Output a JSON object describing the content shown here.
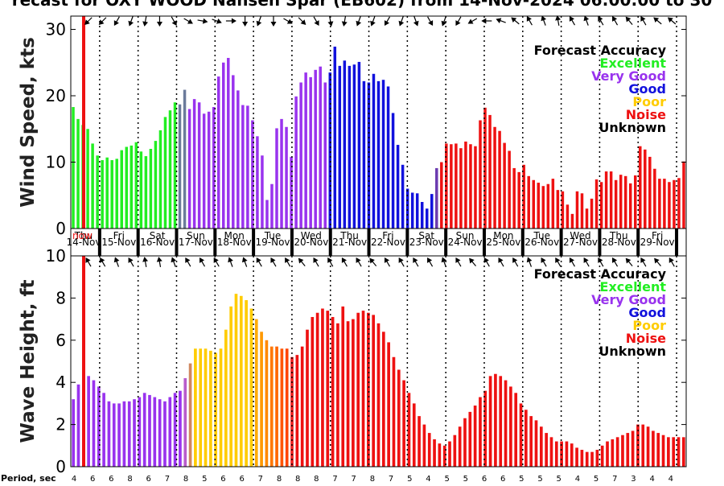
{
  "title": "recast for OXY WOOD Nansen Spar (EB602) from 14-Nov-2024 06:00:00 to 30",
  "now_label": "now",
  "day_labels": [
    "Thu",
    "Fri",
    "Sat",
    "Sun",
    "Mon",
    "Tue",
    "Wed",
    "Thu",
    "Fri",
    "Sat",
    "Sun",
    "Mon",
    "Tue",
    "Wed",
    "Thu",
    "Fri"
  ],
  "date_labels": [
    "14-Nov",
    "15-Nov",
    "16-Nov",
    "17-Nov",
    "18-Nov",
    "19-Nov",
    "20-Nov",
    "21-Nov",
    "22-Nov",
    "23-Nov",
    "24-Nov",
    "25-Nov",
    "26-Nov",
    "27-Nov",
    "28-Nov",
    "29-Nov"
  ],
  "legend": {
    "title": "Forecast Accuracy",
    "items": [
      {
        "label": "Excellent",
        "color": "#22ee22"
      },
      {
        "label": "Very Good",
        "color": "#9933ee"
      },
      {
        "label": "Good",
        "color": "#1111dd"
      },
      {
        "label": "Poor",
        "color": "#ffcc00"
      },
      {
        "label": "Noise",
        "color": "#ee1111"
      },
      {
        "label": "Unknown",
        "color": "#000000"
      }
    ]
  },
  "period_label": "Period, sec",
  "chart_data": [
    {
      "type": "bar",
      "ylabel": "Wind Speed, kts",
      "ylim": [
        0,
        32
      ],
      "yticks": [
        0,
        10,
        20,
        30
      ],
      "values": [
        18.3,
        16.5,
        15.6,
        15.0,
        12.8,
        11.0,
        10.3,
        10.7,
        10.3,
        10.5,
        11.8,
        12.3,
        12.5,
        13.0,
        11.6,
        10.9,
        12.0,
        13.2,
        14.8,
        16.8,
        17.8,
        19.0,
        18.7,
        20.9,
        18.0,
        19.5,
        19.0,
        17.3,
        17.6,
        18.3,
        22.9,
        25.0,
        25.7,
        23.1,
        20.8,
        18.6,
        18.5,
        16.3,
        13.9,
        11.0,
        4.3,
        6.7,
        15.1,
        16.5,
        15.3,
        10.8,
        19.9,
        22.0,
        23.5,
        22.8,
        23.9,
        24.4,
        22.0,
        23.5,
        27.4,
        24.5,
        25.3,
        24.5,
        24.7,
        25.1,
        22.2,
        22.0,
        23.3,
        22.2,
        22.4,
        21.4,
        17.4,
        12.6,
        9.6,
        6.0,
        5.4,
        5.3,
        4.0,
        3.0,
        5.2,
        9.1,
        10.0,
        12.8,
        12.7,
        12.8,
        12.1,
        13.1,
        12.7,
        12.4,
        16.3,
        18.2,
        17.1,
        15.3,
        14.7,
        12.9,
        11.7,
        9.1,
        8.5,
        9.6,
        7.9,
        7.3,
        6.9,
        6.4,
        6.7,
        7.5,
        5.8,
        5.6,
        3.6,
        2.2,
        5.6,
        5.3,
        3.0,
        4.5,
        7.4,
        7.0,
        8.6,
        8.6,
        7.3,
        8.1,
        7.9,
        6.8,
        8.0,
        12.4,
        11.9,
        10.8,
        9.0,
        7.5,
        7.5,
        7.0,
        7.3,
        7.6,
        10.1
      ],
      "colors": [
        "#22ee22",
        "#22ee22",
        "#22ee22",
        "#22ee22",
        "#22ee22",
        "#22ee22",
        "#22ee22",
        "#22ee22",
        "#22ee22",
        "#22ee22",
        "#22ee22",
        "#22ee22",
        "#22ee22",
        "#22ee22",
        "#22ee22",
        "#22ee22",
        "#22ee22",
        "#22ee22",
        "#22ee22",
        "#22ee22",
        "#22ee22",
        "#22ee22",
        "#6b7b9b",
        "#6b7b9b",
        "#9933ee",
        "#9933ee",
        "#9933ee",
        "#9933ee",
        "#9933ee",
        "#9933ee",
        "#9933ee",
        "#9933ee",
        "#9933ee",
        "#9933ee",
        "#9933ee",
        "#9933ee",
        "#9933ee",
        "#9933ee",
        "#9933ee",
        "#9933ee",
        "#9933ee",
        "#9933ee",
        "#9933ee",
        "#9933ee",
        "#9933ee",
        "#9933ee",
        "#9933ee",
        "#9933ee",
        "#9933ee",
        "#9933ee",
        "#9933ee",
        "#9933ee",
        "#9933ee",
        "#1111dd",
        "#1111dd",
        "#1111dd",
        "#1111dd",
        "#1111dd",
        "#1111dd",
        "#1111dd",
        "#1111dd",
        "#1111dd",
        "#1111dd",
        "#1111dd",
        "#1111dd",
        "#1111dd",
        "#1111dd",
        "#1111dd",
        "#1111dd",
        "#1111dd",
        "#1111dd",
        "#1111dd",
        "#1111dd",
        "#1111dd",
        "#1111dd",
        "#6b3bb0",
        "#ee1111",
        "#ee1111",
        "#ee1111",
        "#ee1111",
        "#ee1111",
        "#ee1111",
        "#ee1111",
        "#ee1111",
        "#ee1111",
        "#ee1111",
        "#ee1111",
        "#ee1111",
        "#ee1111",
        "#ee1111",
        "#ee1111",
        "#ee1111",
        "#ee1111",
        "#ee1111",
        "#ee1111",
        "#ee1111",
        "#ee1111",
        "#ee1111",
        "#ee1111",
        "#ee1111",
        "#ee1111",
        "#ee1111",
        "#ee1111",
        "#ee1111",
        "#ee1111",
        "#ee1111",
        "#ee1111",
        "#ee1111",
        "#ee1111",
        "#ee1111",
        "#ee1111",
        "#ee1111",
        "#ee1111",
        "#ee1111",
        "#ee1111",
        "#ee1111",
        "#ee1111",
        "#ee1111",
        "#ee1111",
        "#ee1111",
        "#ee1111",
        "#ee1111",
        "#ee1111",
        "#ee1111",
        "#ee1111"
      ],
      "arrow_angles": [
        45,
        45,
        30,
        20,
        10,
        0,
        330,
        300,
        280,
        290,
        270,
        0,
        20,
        0,
        300,
        315,
        330,
        350,
        10,
        20,
        20,
        30,
        20,
        340,
        330,
        20,
        30,
        60,
        90,
        110,
        130,
        150,
        160,
        170,
        150,
        160,
        150,
        150,
        140,
        150,
        130,
        130
      ]
    },
    {
      "type": "bar",
      "ylabel": "Wave Height, ft",
      "ylim": [
        0,
        10
      ],
      "yticks": [
        0,
        2,
        4,
        6,
        8,
        10
      ],
      "values": [
        3.2,
        3.9,
        4.1,
        4.3,
        4.1,
        3.8,
        3.5,
        3.1,
        3.0,
        3.0,
        3.1,
        3.1,
        3.2,
        3.3,
        3.5,
        3.4,
        3.3,
        3.2,
        3.1,
        3.3,
        3.5,
        3.6,
        4.2,
        4.9,
        5.6,
        5.6,
        5.6,
        5.5,
        5.4,
        5.6,
        6.5,
        7.6,
        8.2,
        8.1,
        7.9,
        7.5,
        7.0,
        6.4,
        6.0,
        5.7,
        5.7,
        5.6,
        5.6,
        5.2,
        5.3,
        5.7,
        6.5,
        7.1,
        7.3,
        7.5,
        7.4,
        7.1,
        6.8,
        7.6,
        6.9,
        7.0,
        7.3,
        7.4,
        7.3,
        7.2,
        6.8,
        6.4,
        5.9,
        5.2,
        4.6,
        4.1,
        3.5,
        3.0,
        2.4,
        2.0,
        1.6,
        1.3,
        1.1,
        1.0,
        1.2,
        1.5,
        1.9,
        2.3,
        2.6,
        2.9,
        3.3,
        3.6,
        4.3,
        4.4,
        4.3,
        4.1,
        3.8,
        3.5,
        3.0,
        2.7,
        2.4,
        2.2,
        1.9,
        1.6,
        1.4,
        1.2,
        1.2,
        1.2,
        1.1,
        0.9,
        0.8,
        0.7,
        0.7,
        0.8,
        1.0,
        1.2,
        1.3,
        1.4,
        1.5,
        1.6,
        1.7,
        2.0,
        2.0,
        1.9,
        1.7,
        1.6,
        1.5,
        1.4,
        1.4,
        1.4,
        1.4
      ],
      "colors": [
        "#9933ee",
        "#9933ee",
        "#9933ee",
        "#9933ee",
        "#9933ee",
        "#9933ee",
        "#9933ee",
        "#9933ee",
        "#9933ee",
        "#9933ee",
        "#9933ee",
        "#9933ee",
        "#9933ee",
        "#9933ee",
        "#9933ee",
        "#9933ee",
        "#9933ee",
        "#9933ee",
        "#9933ee",
        "#9933ee",
        "#9933ee",
        "#9933ee",
        "#b85ccc",
        "#d08860",
        "#ffcc00",
        "#ffcc00",
        "#ffcc00",
        "#ffcc00",
        "#ffcc00",
        "#ffcc00",
        "#ffcc00",
        "#ffcc00",
        "#ffcc00",
        "#ffcc00",
        "#ffcc00",
        "#ffcc00",
        "#ffaa00",
        "#ff9900",
        "#ff8800",
        "#ff7700",
        "#ff6600",
        "#ff5500",
        "#ff4400",
        "#ee2222",
        "#ee1111",
        "#ee1111",
        "#ee1111",
        "#ee1111",
        "#ee1111",
        "#ee1111",
        "#ee1111",
        "#ee1111",
        "#ee1111",
        "#ee1111",
        "#ee1111",
        "#ee1111",
        "#ee1111",
        "#ee1111",
        "#ee1111",
        "#ee1111",
        "#ee1111",
        "#ee1111",
        "#ee1111",
        "#ee1111",
        "#ee1111",
        "#ee1111",
        "#ee1111",
        "#ee1111",
        "#ee1111",
        "#ee1111",
        "#ee1111",
        "#ee1111",
        "#ee1111",
        "#ee1111",
        "#ee1111",
        "#ee1111",
        "#ee1111",
        "#ee1111",
        "#ee1111",
        "#ee1111",
        "#ee1111",
        "#ee1111",
        "#ee1111",
        "#ee1111",
        "#ee1111",
        "#ee1111",
        "#ee1111",
        "#ee1111",
        "#ee1111",
        "#ee1111",
        "#ee1111",
        "#ee1111",
        "#ee1111",
        "#ee1111",
        "#ee1111",
        "#ee1111",
        "#ee1111",
        "#ee1111",
        "#ee1111",
        "#ee1111",
        "#ee1111",
        "#ee1111",
        "#ee1111",
        "#ee1111",
        "#ee1111",
        "#ee1111",
        "#ee1111",
        "#ee1111",
        "#ee1111",
        "#ee1111",
        "#ee1111",
        "#ee1111",
        "#ee1111",
        "#ee1111",
        "#ee1111",
        "#ee1111",
        "#ee1111",
        "#ee1111",
        "#ee1111"
      ],
      "arrow_angles": [
        150,
        150,
        160,
        150,
        170,
        170,
        160,
        150,
        150,
        150,
        160,
        160,
        150,
        150,
        150,
        140,
        150,
        150,
        150,
        150,
        140,
        150,
        150,
        150,
        150,
        160,
        150,
        140,
        150,
        150,
        150,
        160,
        150,
        150,
        150,
        150,
        150,
        150,
        140,
        150,
        140,
        150
      ]
    }
  ],
  "periods": [
    "4",
    "6",
    "6",
    "8",
    "6",
    "7",
    "8",
    "5",
    "6",
    "6",
    "7",
    "8",
    "8",
    "8",
    "7",
    "7",
    "8",
    "7",
    "5",
    "4",
    "5",
    "5",
    "6",
    "6",
    "5",
    "5",
    "5",
    "4",
    "5",
    "7",
    "3",
    "4",
    "4"
  ]
}
